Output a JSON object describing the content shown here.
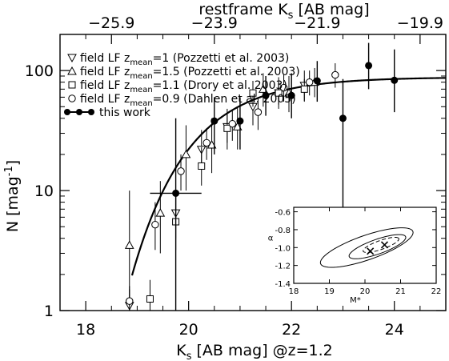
{
  "chart_data": {
    "type": "scatter",
    "xlabel": "K",
    "xlabel_sub": "s",
    "xlabel_rest": " [AB mag] @z=1.2",
    "ylabel": "N [mag",
    "ylabel_sup": "-1",
    "ylabel_end": "]",
    "top_label": "restframe K",
    "top_label_sub": "s",
    "top_label_rest": " [AB mag]",
    "xlim": [
      17.5,
      25
    ],
    "ylim": [
      1,
      200
    ],
    "yscale": "log",
    "x_ticks": [
      18,
      20,
      22,
      24
    ],
    "x_tick_labels": [
      "18",
      "20",
      "22",
      "24"
    ],
    "y_ticks": [
      1,
      10,
      100
    ],
    "y_tick_labels": [
      "1",
      "10",
      "100"
    ],
    "top_ticks_restframe": [
      -25.9,
      -23.9,
      -21.9,
      -19.9
    ],
    "top_tick_labels": [
      "−25.9",
      "−23.9",
      "−21.9",
      "−19.9"
    ],
    "top_tick_positions_apparent": [
      18.5,
      20.5,
      22.5,
      24.5
    ],
    "legend": [
      {
        "marker": "triangle-down",
        "text_pre": "field LF z",
        "sub": "mean",
        "text_post": "=1   (Pozzetti et al. 2003)"
      },
      {
        "marker": "triangle-up",
        "text_pre": "field LF z",
        "sub": "mean",
        "text_post": "=1.5 (Pozzetti et al. 2003)"
      },
      {
        "marker": "square",
        "text_pre": "field LF z",
        "sub": "mean",
        "text_post": "=1.1 (Drory et al. 2003)"
      },
      {
        "marker": "circle",
        "text_pre": "field LF z",
        "sub": "mean",
        "text_post": "=0.9 (Dahlen et al. 2005)"
      },
      {
        "marker": "filled-line",
        "text_pre": "this work",
        "sub": "",
        "text_post": ""
      }
    ],
    "series": [
      {
        "name": "this work",
        "marker": "filled-circle",
        "points": [
          {
            "x": 19.75,
            "y": 9.5,
            "ylo": 1.0,
            "yhi": 40,
            "xerr": 0.5
          },
          {
            "x": 20.5,
            "y": 38,
            "ylo": 20,
            "yhi": 60
          },
          {
            "x": 21.0,
            "y": 38,
            "ylo": 22,
            "yhi": 60
          },
          {
            "x": 21.5,
            "y": 62,
            "ylo": 42,
            "yhi": 90
          },
          {
            "x": 22.0,
            "y": 62,
            "ylo": 40,
            "yhi": 95
          },
          {
            "x": 22.5,
            "y": 82,
            "ylo": 55,
            "yhi": 120
          },
          {
            "x": 23.0,
            "y": 40,
            "ylo": 5.0,
            "yhi": 85
          },
          {
            "x": 23.5,
            "y": 110,
            "ylo": 70,
            "yhi": 170
          },
          {
            "x": 24.0,
            "y": 83,
            "ylo": 45,
            "yhi": 150
          }
        ]
      },
      {
        "name": "field LF z_mean=1 (Pozzetti et al. 2003)",
        "marker": "triangle-down",
        "points": [
          {
            "x": 18.85,
            "y": 1.1,
            "ylo": 0.9,
            "yhi": 1.5
          },
          {
            "x": 19.75,
            "y": 6.5,
            "ylo": 4.0,
            "yhi": 9.0
          },
          {
            "x": 20.25,
            "y": 22,
            "ylo": 15,
            "yhi": 32
          },
          {
            "x": 20.75,
            "y": 34,
            "ylo": 22,
            "yhi": 48
          },
          {
            "x": 21.25,
            "y": 50,
            "ylo": 35,
            "yhi": 70
          },
          {
            "x": 21.75,
            "y": 65,
            "ylo": 48,
            "yhi": 88
          },
          {
            "x": 22.25,
            "y": 75,
            "ylo": 55,
            "yhi": 100
          }
        ]
      },
      {
        "name": "field LF z_mean=1.5 (Pozzetti et al. 2003)",
        "marker": "triangle-up",
        "points": [
          {
            "x": 18.85,
            "y": 3.5,
            "ylo": 1.1,
            "yhi": 10
          },
          {
            "x": 19.45,
            "y": 6.5,
            "ylo": 3.0,
            "yhi": 12
          },
          {
            "x": 19.95,
            "y": 20,
            "ylo": 10,
            "yhi": 35
          },
          {
            "x": 20.45,
            "y": 24,
            "ylo": 14,
            "yhi": 40
          },
          {
            "x": 20.95,
            "y": 34,
            "ylo": 22,
            "yhi": 50
          },
          {
            "x": 21.45,
            "y": 70,
            "ylo": 50,
            "yhi": 95
          },
          {
            "x": 21.95,
            "y": 65,
            "ylo": 45,
            "yhi": 90
          },
          {
            "x": 22.45,
            "y": 80,
            "ylo": 60,
            "yhi": 105
          }
        ]
      },
      {
        "name": "field LF z_mean=1.1 (Drory et al. 2003)",
        "marker": "square",
        "points": [
          {
            "x": 19.25,
            "y": 1.25,
            "ylo": 0.9,
            "yhi": 1.8
          },
          {
            "x": 19.75,
            "y": 5.5,
            "ylo": 3.2,
            "yhi": 9.0
          },
          {
            "x": 20.25,
            "y": 16,
            "ylo": 11,
            "yhi": 23
          },
          {
            "x": 20.75,
            "y": 33,
            "ylo": 25,
            "yhi": 43
          },
          {
            "x": 21.25,
            "y": 65,
            "ylo": 50,
            "yhi": 82
          },
          {
            "x": 21.75,
            "y": 65,
            "ylo": 52,
            "yhi": 80
          },
          {
            "x": 22.25,
            "y": 70,
            "ylo": 56,
            "yhi": 85
          }
        ]
      },
      {
        "name": "field LF z_mean=0.9 (Dahlen et al. 2005)",
        "marker": "circle",
        "points": [
          {
            "x": 18.85,
            "y": 1.2,
            "ylo": 0.9,
            "yhi": 1.6
          },
          {
            "x": 19.35,
            "y": 5.2,
            "ylo": 3.2,
            "yhi": 8.0
          },
          {
            "x": 19.85,
            "y": 14.5,
            "ylo": 10,
            "yhi": 20
          },
          {
            "x": 20.35,
            "y": 25,
            "ylo": 18,
            "yhi": 33
          },
          {
            "x": 20.85,
            "y": 36,
            "ylo": 26,
            "yhi": 47
          },
          {
            "x": 21.35,
            "y": 45,
            "ylo": 32,
            "yhi": 60
          },
          {
            "x": 21.85,
            "y": 72,
            "ylo": 55,
            "yhi": 92
          },
          {
            "x": 22.35,
            "y": 80,
            "ylo": 62,
            "yhi": 100
          },
          {
            "x": 22.85,
            "y": 92,
            "ylo": 72,
            "yhi": 115
          }
        ]
      }
    ],
    "fit_curve": {
      "type": "schechter",
      "phi_star": 88,
      "m_star": 20.35,
      "alpha": -1.0
    },
    "inset": {
      "xlabel": "M*",
      "ylabel": "α",
      "xlim": [
        18,
        22
      ],
      "ylim": [
        -1.4,
        -0.55
      ],
      "x_ticks": [
        18,
        19,
        20,
        21,
        22
      ],
      "x_tick_labels": [
        "18",
        "19",
        "20",
        "21",
        "22"
      ],
      "y_ticks": [
        -1.4,
        -1.2,
        -1.0,
        -0.8,
        -0.6
      ],
      "y_tick_labels": [
        "-1.4",
        "-1.2",
        "-1.0",
        "-0.8",
        "-0.6"
      ],
      "best_fit": {
        "x": 20.55,
        "y": -0.97
      },
      "second_fit": {
        "x": 20.15,
        "y": -1.04
      }
    }
  }
}
